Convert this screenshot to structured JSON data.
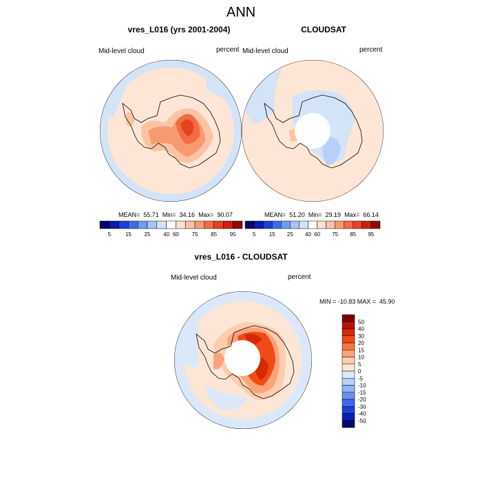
{
  "page_title": "ANN",
  "panels": [
    {
      "title": "vres_L016 (yrs 2001-2004)",
      "left_label": "Mid-level cloud",
      "right_label": "percent",
      "stats": "MEAN=  55.71  Min=  34.16  Max=  90.07"
    },
    {
      "title": "CLOUDSAT",
      "left_label": "Mid-level cloud",
      "right_label": "percent",
      "stats": "MEAN=  51.20  Min=  29.19  Max=  66.14"
    },
    {
      "title": "vres_L016 - CLOUDSAT",
      "left_label": "Mid-level cloud",
      "right_label": "percent",
      "stats": "MIN = -10.83 MAX =  45.90"
    }
  ],
  "horizontal_colorbar": {
    "tick_labels": [
      "5",
      "15",
      "25",
      "40",
      "60",
      "75",
      "85",
      "95"
    ],
    "colors": [
      "#08036b",
      "#0b1aa8",
      "#1a3fd8",
      "#3b6cf0",
      "#6e9cf2",
      "#a7c4f4",
      "#d3e3f8",
      "#ffffff",
      "#fde0cf",
      "#fbc3a4",
      "#f79a72",
      "#f26c43",
      "#e6421f",
      "#cc210f",
      "#8f0a04"
    ]
  },
  "vertical_colorbar": {
    "tick_labels": [
      "50",
      "40",
      "30",
      "20",
      "15",
      "10",
      "5",
      "0",
      "-5",
      "-10",
      "-15",
      "-20",
      "-30",
      "-40",
      "-50"
    ],
    "colors": [
      "#7a0000",
      "#b51300",
      "#d42a06",
      "#f04a17",
      "#f7753c",
      "#fba47a",
      "#fdcdae",
      "#fde6d6",
      "#dbe8fa",
      "#b6d0f7",
      "#8fb3f3",
      "#6890ef",
      "#3f69eb",
      "#1a3fe0",
      "#0a1fb5",
      "#020a6b"
    ]
  }
}
